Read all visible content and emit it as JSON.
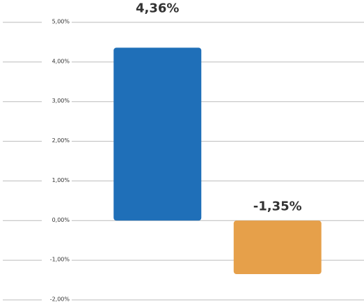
{
  "chart_data": {
    "type": "bar",
    "categories": [
      null,
      null
    ],
    "values": [
      4.36,
      -1.35
    ],
    "value_labels": [
      "4,36%",
      "-1,35%"
    ],
    "colors": [
      "#1f6fb8",
      "#e6a04a"
    ],
    "ylim": [
      -2,
      5
    ],
    "yticks": [
      {
        "value": -2,
        "label": "-2,00%"
      },
      {
        "value": -1,
        "label": "-1,00%"
      },
      {
        "value": 0,
        "label": "0,00%"
      },
      {
        "value": 1,
        "label": "1,00%"
      },
      {
        "value": 2,
        "label": "2,00%"
      },
      {
        "value": 3,
        "label": "3,00%"
      },
      {
        "value": 4,
        "label": "4,00%"
      },
      {
        "value": 5,
        "label": "5,00%"
      }
    ],
    "grid": true
  }
}
